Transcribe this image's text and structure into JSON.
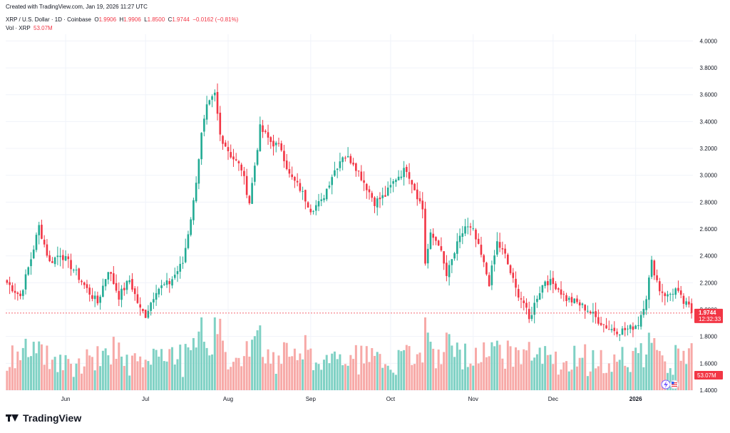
{
  "header": {
    "created_with": "Created with TradingView.com, Jan 19, 2026 11:27 UTC"
  },
  "legend": {
    "symbol": "XRP / U.S. Dollar · 1D · Coinbase",
    "o_label": "O",
    "o": "1.9906",
    "h_label": "H",
    "h": "1.9906",
    "l_label": "L",
    "l": "1.8500",
    "c_label": "C",
    "c": "1.9744",
    "change": "−0.0162 (−0.81%)",
    "vol_label": "Vol · XRP",
    "vol_value": "53.07M"
  },
  "price_label": {
    "value": "1.9744",
    "countdown": "12:32:33"
  },
  "volume_label": "53.07M",
  "footer": {
    "brand": "TradingView"
  },
  "colors": {
    "up": "#22ab94",
    "down": "#f23645",
    "vol_up": "#7fd1c4",
    "vol_down": "#f7a9a7",
    "grid": "#f0f3fa"
  },
  "chart_data": {
    "type": "candlestick",
    "y_axis": {
      "ticks": [
        1.4,
        1.6,
        1.8,
        2.0,
        2.2,
        2.4,
        2.6,
        2.8,
        3.0,
        3.2,
        3.4,
        3.6,
        3.8,
        4.0
      ],
      "tick_labels": [
        "1.4000",
        "1.6000",
        "1.8000",
        "2.0000",
        "2.2000",
        "2.4000",
        "2.6000",
        "2.8000",
        "3.0000",
        "3.2000",
        "3.4000",
        "3.6000",
        "3.8000",
        "4.0000"
      ],
      "range": [
        1.4,
        4.05
      ]
    },
    "x_axis": {
      "labels": [
        "Jun",
        "Jul",
        "Aug",
        "Sep",
        "Oct",
        "Nov",
        "Dec",
        "2026"
      ],
      "label_days": [
        22,
        52,
        83,
        114,
        144,
        175,
        205,
        236
      ]
    },
    "last_close": 1.9744,
    "days": 258,
    "anchors": [
      [
        0,
        2.2
      ],
      [
        5,
        2.1
      ],
      [
        9,
        2.38
      ],
      [
        12,
        2.62
      ],
      [
        16,
        2.35
      ],
      [
        20,
        2.42
      ],
      [
        25,
        2.3
      ],
      [
        30,
        2.15
      ],
      [
        34,
        2.05
      ],
      [
        38,
        2.3
      ],
      [
        42,
        2.1
      ],
      [
        46,
        2.22
      ],
      [
        50,
        2.0
      ],
      [
        52,
        1.96
      ],
      [
        56,
        2.15
      ],
      [
        61,
        2.2
      ],
      [
        66,
        2.35
      ],
      [
        70,
        2.8
      ],
      [
        73,
        3.3
      ],
      [
        75,
        3.5
      ],
      [
        78,
        3.6
      ],
      [
        80,
        3.3
      ],
      [
        84,
        3.15
      ],
      [
        88,
        3.05
      ],
      [
        91,
        2.8
      ],
      [
        95,
        3.35
      ],
      [
        99,
        3.25
      ],
      [
        103,
        3.2
      ],
      [
        106,
        3.0
      ],
      [
        110,
        2.9
      ],
      [
        114,
        2.75
      ],
      [
        118,
        2.8
      ],
      [
        122,
        3.0
      ],
      [
        126,
        3.15
      ],
      [
        130,
        3.1
      ],
      [
        134,
        2.95
      ],
      [
        138,
        2.8
      ],
      [
        142,
        2.85
      ],
      [
        146,
        2.98
      ],
      [
        150,
        3.05
      ],
      [
        153,
        2.9
      ],
      [
        156,
        2.75
      ],
      [
        157,
        2.35
      ],
      [
        159,
        2.55
      ],
      [
        162,
        2.5
      ],
      [
        165,
        2.25
      ],
      [
        169,
        2.48
      ],
      [
        172,
        2.62
      ],
      [
        175,
        2.58
      ],
      [
        178,
        2.4
      ],
      [
        181,
        2.2
      ],
      [
        184,
        2.5
      ],
      [
        187,
        2.4
      ],
      [
        191,
        2.15
      ],
      [
        194,
        2.05
      ],
      [
        196,
        1.92
      ],
      [
        199,
        2.1
      ],
      [
        202,
        2.22
      ],
      [
        206,
        2.18
      ],
      [
        210,
        2.08
      ],
      [
        214,
        2.05
      ],
      [
        218,
        2.0
      ],
      [
        222,
        1.92
      ],
      [
        226,
        1.86
      ],
      [
        230,
        1.84
      ],
      [
        234,
        1.86
      ],
      [
        237,
        1.9
      ],
      [
        240,
        2.1
      ],
      [
        242,
        2.35
      ],
      [
        245,
        2.15
      ],
      [
        248,
        2.1
      ],
      [
        251,
        2.15
      ],
      [
        254,
        2.05
      ],
      [
        256,
        2.02
      ],
      [
        257,
        1.97
      ]
    ],
    "volume_range": [
      0,
      6.5
    ]
  }
}
